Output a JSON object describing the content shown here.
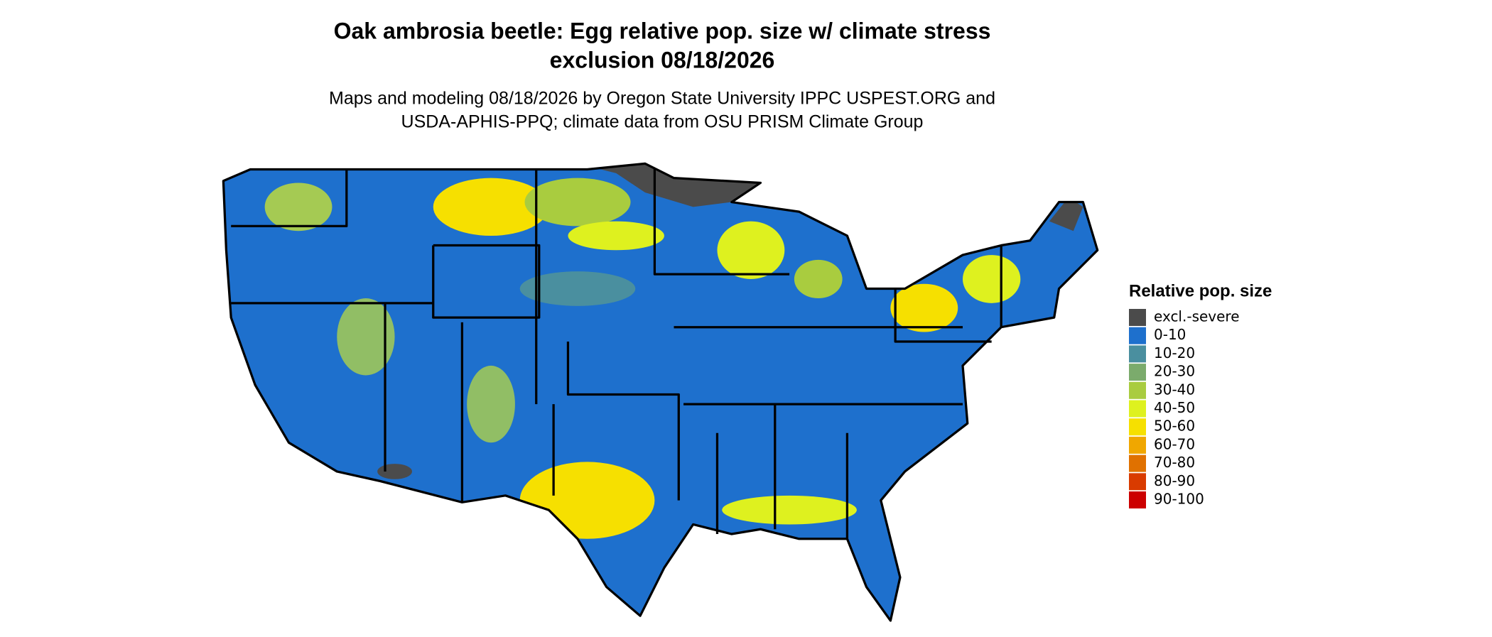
{
  "header": {
    "title_lines": [
      "Oak ambrosia beetle: Egg relative pop. size w/ climate stress",
      "exclusion 08/18/2026"
    ],
    "subtitle_lines": [
      "Maps and modeling 08/18/2026 by Oregon State University IPPC USPEST.ORG and",
      "USDA-APHIS-PPQ; climate data from OSU PRISM Climate Group"
    ]
  },
  "legend": {
    "title": "Relative pop. size",
    "items": [
      {
        "label": "excl.-severe",
        "color": "#4b4b4b"
      },
      {
        "label": "0-10",
        "color": "#1e70cd"
      },
      {
        "label": "10-20",
        "color": "#4a8f9f"
      },
      {
        "label": "20-30",
        "color": "#7bab6c"
      },
      {
        "label": "30-40",
        "color": "#a9cc3f"
      },
      {
        "label": "40-50",
        "color": "#def11f"
      },
      {
        "label": "50-60",
        "color": "#f6e000"
      },
      {
        "label": "60-70",
        "color": "#f0a700"
      },
      {
        "label": "70-80",
        "color": "#e07100"
      },
      {
        "label": "80-90",
        "color": "#d93b00"
      },
      {
        "label": "90-100",
        "color": "#cc0000"
      }
    ]
  }
}
